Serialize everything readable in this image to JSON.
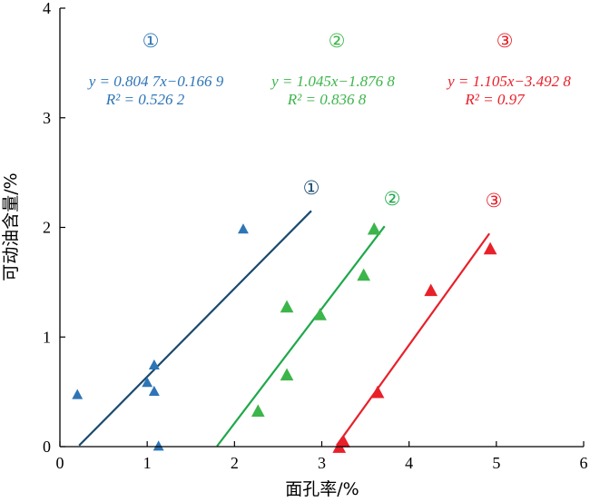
{
  "chart_data": {
    "type": "scatter",
    "xlabel": "面孔率/%",
    "ylabel": "可动油含量/%",
    "xlim": [
      0,
      6
    ],
    "ylim": [
      0,
      4
    ],
    "xticks": [
      "0",
      "1",
      "2",
      "3",
      "4",
      "5",
      "6"
    ],
    "yticks": [
      "0",
      "1",
      "2",
      "3",
      "4"
    ],
    "grid": false,
    "series": [
      {
        "name": "①",
        "color": "#2e75b6",
        "line_color": "#1a4a6e",
        "marker": "triangle",
        "points": [
          [
            0.2,
            0.48
          ],
          [
            1.0,
            0.59
          ],
          [
            1.08,
            0.51
          ],
          [
            1.08,
            0.75
          ],
          [
            1.13,
            0.01
          ],
          [
            2.1,
            1.99
          ]
        ],
        "fit": {
          "slope": 0.8047,
          "intercept": -0.1669,
          "x_range": [
            0.22,
            2.88
          ]
        },
        "equation": "y = 0.804 7x−0.166 9",
        "r2": "R² = 0.526 2",
        "line_label": "①"
      },
      {
        "name": "②",
        "color": "#3cb54a",
        "line_color": "#1fa84a",
        "marker": "triangle",
        "points": [
          [
            2.27,
            0.33
          ],
          [
            2.6,
            0.66
          ],
          [
            2.6,
            1.28
          ],
          [
            2.98,
            1.21
          ],
          [
            3.48,
            1.57
          ],
          [
            3.6,
            1.99
          ]
        ],
        "fit": {
          "slope": 1.045,
          "intercept": -1.8768,
          "x_range": [
            1.8,
            3.72
          ]
        },
        "equation": "y = 1.045x−1.876 8",
        "r2": "R² = 0.836 8",
        "line_label": "②"
      },
      {
        "name": "③",
        "color": "#e8202a",
        "line_color": "#e8202a",
        "marker": "triangle",
        "points": [
          [
            3.2,
            0.0
          ],
          [
            3.25,
            0.05
          ],
          [
            3.64,
            0.5
          ],
          [
            4.25,
            1.43
          ],
          [
            4.93,
            1.81
          ]
        ],
        "fit": {
          "slope": 1.105,
          "intercept": -3.4928,
          "x_range": [
            3.17,
            4.92
          ]
        },
        "equation": "y = 1.105x−3.492 8",
        "r2": "R² = 0.97",
        "line_label": "③"
      }
    ]
  }
}
